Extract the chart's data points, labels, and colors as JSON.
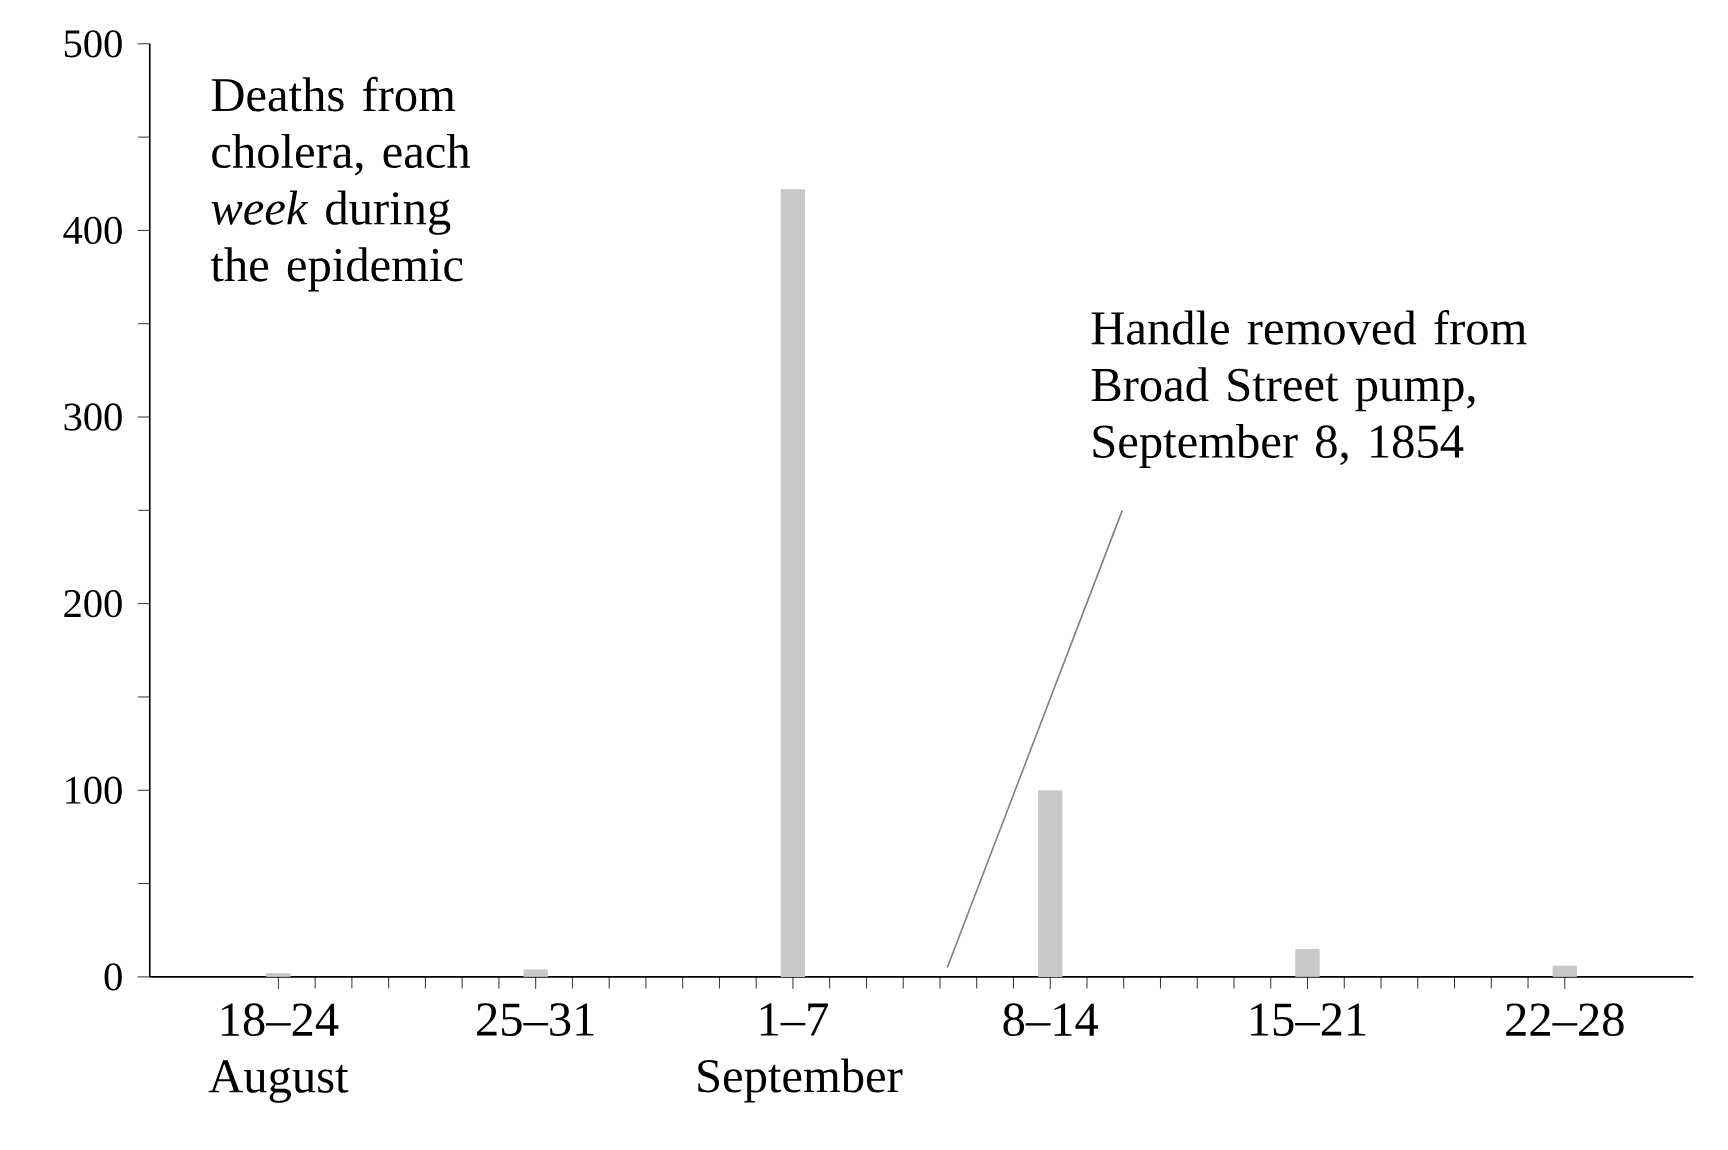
{
  "chart_data": {
    "type": "bar",
    "title": "Deaths from cholera, each *week* during the epidemic",
    "categories": [
      "18–24 August",
      "25–31",
      "1–7 September",
      "8–14",
      "15–21",
      "22–28"
    ],
    "values": [
      2,
      4,
      422,
      100,
      15,
      6
    ],
    "color": "#c8c8c8",
    "ylim": [
      0,
      500
    ],
    "yticks": [
      0,
      100,
      200,
      300,
      400,
      500
    ],
    "annotations": [
      "Handle removed from Broad Street pump, September 8, 1854"
    ]
  }
}
